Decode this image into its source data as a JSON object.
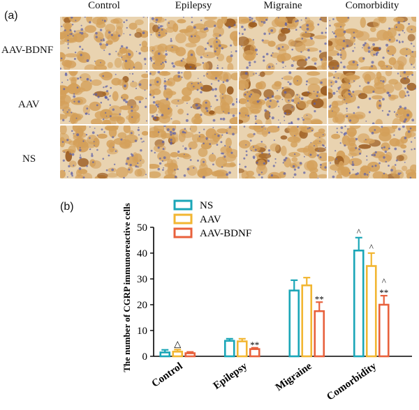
{
  "panel_a": {
    "label": "(a)",
    "columns": [
      "Control",
      "Epilepsy",
      "Migraine",
      "Comorbidity"
    ],
    "rows": [
      "AAV-BDNF",
      "AAV",
      "NS"
    ],
    "tile_colors": {
      "background": "#e9d3b0",
      "cell": "#d4a05a",
      "dark_cell": "#9a5a1e",
      "nuclei": "#5a5ea8"
    }
  },
  "panel_b": {
    "label": "(b)"
  },
  "chart_data": {
    "type": "bar",
    "ylabel": "The number of CGRP immunoreactive cells",
    "ylim": [
      0,
      50
    ],
    "yticks": [
      0,
      10,
      20,
      30,
      40,
      50
    ],
    "categories": [
      "Control",
      "Epilepsy",
      "Migraine",
      "Comorbidity"
    ],
    "legend_position": "top",
    "series": [
      {
        "name": "NS",
        "color": "#1aa6b7",
        "values": [
          1.5,
          6,
          25.5,
          41
        ],
        "errors": [
          1,
          0.8,
          4,
          5
        ]
      },
      {
        "name": "AAV",
        "color": "#f2b632",
        "values": [
          1.8,
          5.8,
          27.5,
          35
        ],
        "errors": [
          0.8,
          1,
          3,
          5
        ]
      },
      {
        "name": "AAV-BDNF",
        "color": "#e8613c",
        "values": [
          1.2,
          2.8,
          17.5,
          20
        ],
        "errors": [
          0.5,
          0.5,
          3.5,
          3.5
        ]
      }
    ],
    "annotations": [
      {
        "category": "Control",
        "series": "AAV",
        "text": "△"
      },
      {
        "category": "Epilepsy",
        "series": "AAV-BDNF",
        "text": "**"
      },
      {
        "category": "Migraine",
        "series": "AAV-BDNF",
        "text": "**"
      },
      {
        "category": "Comorbidity",
        "series": "NS",
        "text": "^"
      },
      {
        "category": "Comorbidity",
        "series": "AAV",
        "text": "^"
      },
      {
        "category": "Comorbidity",
        "series": "AAV-BDNF",
        "text": "^"
      },
      {
        "category": "Comorbidity",
        "series": "AAV-BDNF",
        "text": "**"
      }
    ],
    "grid": false
  }
}
